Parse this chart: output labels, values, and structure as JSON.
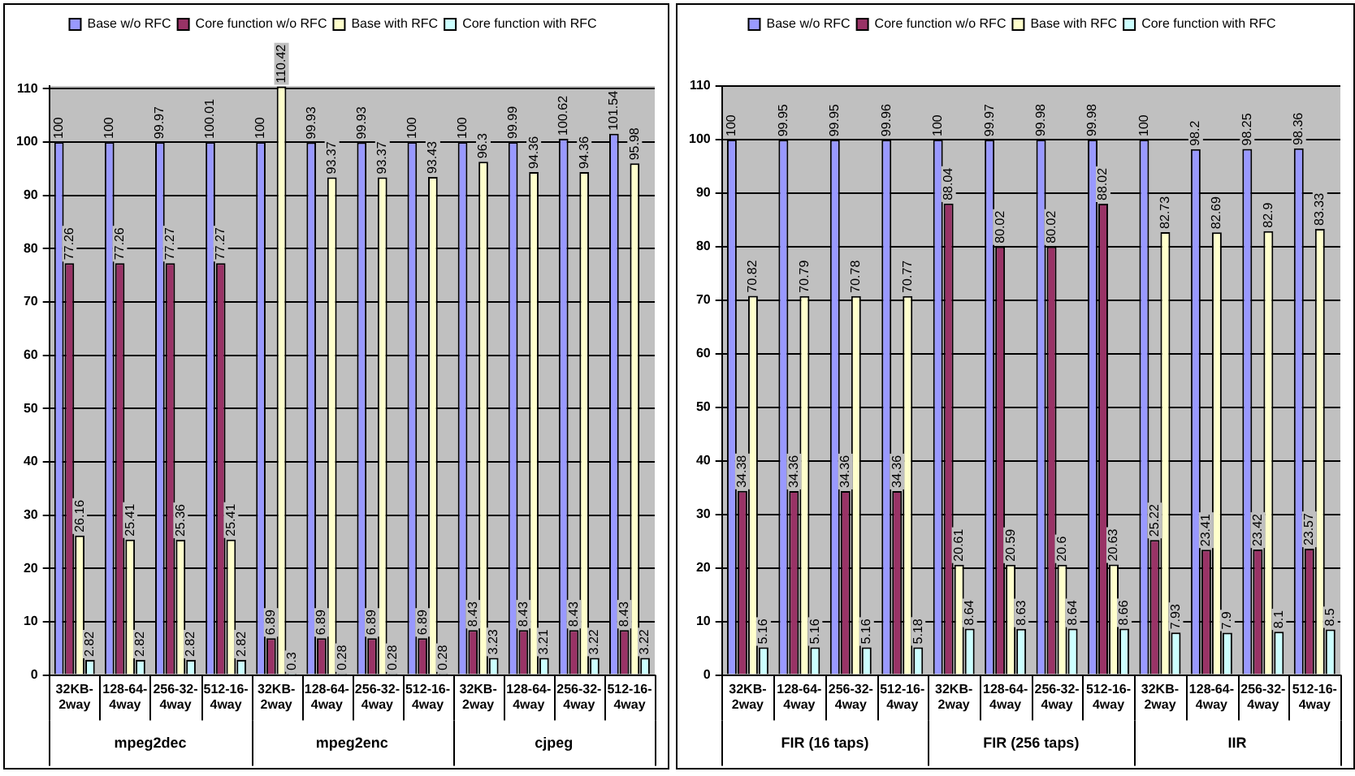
{
  "chart_data": [
    {
      "type": "bar",
      "categories": [
        "32KB-2way",
        "128-64-4way",
        "256-32-4way",
        "512-16-4way",
        "32KB-2way",
        "128-64-4way",
        "256-32-4way",
        "512-16-4way",
        "32KB-2way",
        "128-64-4way",
        "256-32-4way",
        "512-16-4way"
      ],
      "annotations": [
        "mpeg2dec",
        "mpeg2enc",
        "cjpeg"
      ],
      "series": [
        {
          "name": "Base w/o RFC",
          "color": "#9999ff",
          "values": [
            100,
            100,
            99.97,
            100.01,
            100,
            99.93,
            99.93,
            100,
            100,
            99.99,
            100.62,
            101.54
          ]
        },
        {
          "name": "Core function w/o RFC",
          "color": "#993366",
          "values": [
            77.26,
            77.26,
            77.27,
            77.27,
            6.89,
            6.89,
            6.89,
            6.89,
            8.43,
            8.43,
            8.43,
            8.43
          ]
        },
        {
          "name": "Base with RFC",
          "color": "#ffffcc",
          "values": [
            26.16,
            25.41,
            25.36,
            25.41,
            110.42,
            93.37,
            93.37,
            93.43,
            96.3,
            94.36,
            94.36,
            95.98
          ]
        },
        {
          "name": "Core function with RFC",
          "color": "#ccffff",
          "values": [
            2.82,
            2.82,
            2.82,
            2.82,
            0.3,
            0.28,
            0.28,
            0.28,
            3.23,
            3.21,
            3.22,
            3.22
          ]
        }
      ],
      "ylim": [
        0,
        110.5
      ],
      "yticks": [
        0,
        10,
        20,
        30,
        40,
        50,
        60,
        70,
        80,
        90,
        100,
        110
      ],
      "grid": "y",
      "legend": "top",
      "data_labels": true
    },
    {
      "type": "bar",
      "categories": [
        "32KB-2way",
        "128-64-4way",
        "256-32-4way",
        "512-16-4way",
        "32KB-2way",
        "128-64-4way",
        "256-32-4way",
        "512-16-4way",
        "32KB-2way",
        "128-64-4way",
        "256-32-4way",
        "512-16-4way"
      ],
      "annotations": [
        "FIR (16 taps)",
        "FIR (256 taps)",
        "IIR"
      ],
      "series": [
        {
          "name": "Base w/o RFC",
          "color": "#9999ff",
          "values": [
            100,
            99.95,
            99.95,
            99.96,
            100,
            99.97,
            99.98,
            99.98,
            100,
            98.2,
            98.25,
            98.36
          ]
        },
        {
          "name": "Core function w/o RFC",
          "color": "#993366",
          "values": [
            34.38,
            34.36,
            34.36,
            34.36,
            88.04,
            80.02,
            80.02,
            88.02,
            25.22,
            23.41,
            23.42,
            23.57
          ]
        },
        {
          "name": "Base with RFC",
          "color": "#ffffcc",
          "values": [
            70.82,
            70.79,
            70.78,
            70.77,
            20.61,
            20.59,
            20.6,
            20.63,
            82.73,
            82.69,
            82.9,
            83.33
          ]
        },
        {
          "name": "Core function with RFC",
          "color": "#ccffff",
          "values": [
            5.16,
            5.16,
            5.16,
            5.18,
            8.64,
            8.63,
            8.64,
            8.66,
            7.93,
            7.9,
            8.1,
            8.5
          ]
        }
      ],
      "ylim": [
        0,
        110
      ],
      "yticks": [
        0,
        10,
        20,
        30,
        40,
        50,
        60,
        70,
        80,
        90,
        100,
        110
      ],
      "grid": "y",
      "legend": "top",
      "data_labels": true
    }
  ]
}
